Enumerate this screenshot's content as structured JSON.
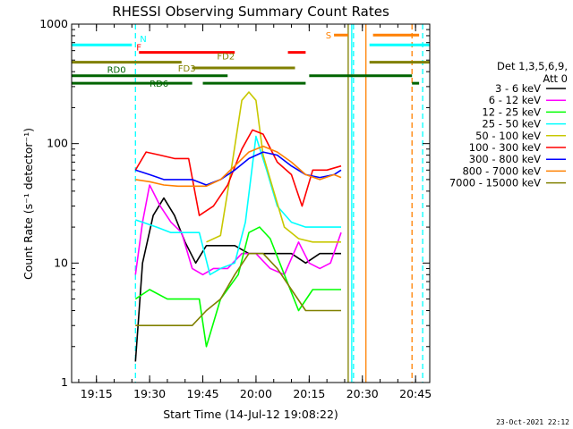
{
  "chart_data": {
    "type": "line",
    "title": "RHESSI Observing Summary Count Rates",
    "xlabel": "Start Time (14-Jul-12 19:08:22)",
    "ylabel": "Count Rate (s⁻¹ detector⁻¹)",
    "y_scale": "log",
    "xlim": [
      "19:08",
      "20:49"
    ],
    "ylim": [
      1,
      1000
    ],
    "x_ticks": [
      "19:15",
      "19:30",
      "19:45",
      "20:00",
      "20:15",
      "20:30",
      "20:45"
    ],
    "y_ticks": [
      "1",
      "10",
      "100",
      "1000"
    ],
    "footer_stamp": "23-Oct-2021 22:12",
    "legend_header": [
      "Det 1,3,5,6,9,",
      "Att 0"
    ],
    "series": [
      {
        "name": "3 - 6 keV",
        "color": "#000000",
        "x": [
          "19:26",
          "19:28",
          "19:31",
          "19:34",
          "19:37",
          "19:40",
          "19:43",
          "19:46",
          "19:50",
          "19:54",
          "19:58",
          "20:02",
          "20:06",
          "20:10",
          "20:14",
          "20:18",
          "20:22",
          "20:24"
        ],
        "y": [
          1.5,
          10,
          25,
          35,
          25,
          15,
          10,
          14,
          14,
          14,
          12,
          12,
          12,
          12,
          10,
          12,
          12,
          12
        ]
      },
      {
        "name": "6 - 12 keV",
        "color": "#ff00ff",
        "x": [
          "19:26",
          "19:28",
          "19:30",
          "19:33",
          "19:36",
          "19:39",
          "19:42",
          "19:45",
          "19:48",
          "19:52",
          "19:56",
          "20:00",
          "20:04",
          "20:08",
          "20:12",
          "20:15",
          "20:18",
          "20:21",
          "20:24"
        ],
        "y": [
          8,
          22,
          45,
          30,
          22,
          18,
          9,
          8,
          9,
          9,
          12,
          12,
          9,
          8,
          15,
          10,
          9,
          10,
          18
        ]
      },
      {
        "name": "12 - 25 keV",
        "color": "#00ff00",
        "x": [
          "19:26",
          "19:30",
          "19:35",
          "19:40",
          "19:44",
          "19:46",
          "19:50",
          "19:55",
          "19:58",
          "20:01",
          "20:04",
          "20:08",
          "20:12",
          "20:16",
          "20:20",
          "20:24"
        ],
        "y": [
          5,
          6,
          5,
          5,
          5,
          2,
          5,
          8,
          18,
          20,
          16,
          8,
          4,
          6,
          6,
          6
        ]
      },
      {
        "name": "25 - 50 keV",
        "color": "#00ffff",
        "x": [
          "19:26",
          "19:28",
          "19:32",
          "19:36",
          "19:40",
          "19:44",
          "19:47",
          "19:50",
          "19:54",
          "19:57",
          "20:00",
          "20:03",
          "20:06",
          "20:10",
          "20:14",
          "20:18",
          "20:22",
          "20:24"
        ],
        "y": [
          23,
          22,
          20,
          18,
          18,
          18,
          8,
          9,
          10,
          22,
          115,
          60,
          30,
          22,
          20,
          20,
          20,
          20
        ]
      },
      {
        "name": "50 - 100 keV",
        "color": "#c8c800",
        "x": [
          "19:46",
          "19:50",
          "19:53",
          "19:56",
          "19:58",
          "20:00",
          "20:02",
          "20:05",
          "20:08",
          "20:12",
          "20:16",
          "20:20",
          "20:24"
        ],
        "y": [
          15,
          17,
          60,
          230,
          270,
          230,
          80,
          40,
          20,
          16,
          15,
          15,
          15
        ]
      },
      {
        "name": "100 - 300 keV",
        "color": "#ff0000",
        "x": [
          "19:26",
          "19:29",
          "19:33",
          "19:37",
          "19:41",
          "19:44",
          "19:48",
          "19:52",
          "19:56",
          "19:59",
          "20:02",
          "20:06",
          "20:10",
          "20:13",
          "20:16",
          "20:20",
          "20:24"
        ],
        "y": [
          60,
          85,
          80,
          75,
          75,
          25,
          30,
          45,
          90,
          130,
          120,
          70,
          55,
          30,
          60,
          60,
          65
        ]
      },
      {
        "name": "300 - 800 keV",
        "color": "#0000ff",
        "x": [
          "19:26",
          "19:30",
          "19:34",
          "19:38",
          "19:42",
          "19:46",
          "19:50",
          "19:54",
          "19:58",
          "20:02",
          "20:06",
          "20:10",
          "20:14",
          "20:18",
          "20:22",
          "20:24"
        ],
        "y": [
          60,
          55,
          50,
          50,
          50,
          45,
          50,
          60,
          75,
          85,
          80,
          65,
          55,
          52,
          55,
          60
        ]
      },
      {
        "name": "800 - 7000 keV",
        "color": "#ff8000",
        "x": [
          "19:26",
          "19:30",
          "19:34",
          "19:38",
          "19:42",
          "19:46",
          "19:50",
          "19:54",
          "19:58",
          "20:02",
          "20:06",
          "20:10",
          "20:14",
          "20:18",
          "20:22",
          "20:24"
        ],
        "y": [
          50,
          48,
          45,
          44,
          44,
          44,
          50,
          65,
          85,
          95,
          85,
          70,
          55,
          50,
          55,
          52
        ]
      },
      {
        "name": "7000 - 15000 keV",
        "color": "#808000",
        "x": [
          "19:26",
          "19:30",
          "19:34",
          "19:38",
          "19:42",
          "19:46",
          "19:50",
          "19:54",
          "19:58",
          "20:02",
          "20:06",
          "20:10",
          "20:14",
          "20:18",
          "20:22",
          "20:24"
        ],
        "y": [
          3,
          3,
          3,
          3,
          3,
          4,
          5,
          8,
          12,
          12,
          9,
          6,
          4,
          4,
          4,
          4
        ]
      }
    ],
    "flag_bars": [
      {
        "label": "N",
        "color": "#00ffff",
        "segments": [
          [
            "19:08",
            "19:25"
          ],
          [
            "20:32",
            "20:49"
          ]
        ],
        "y": 670
      },
      {
        "label": "F",
        "color": "#ff0000",
        "segments": [
          [
            "19:27",
            "19:54"
          ],
          [
            "20:09",
            "20:14"
          ]
        ],
        "y": 580
      },
      {
        "label": "S",
        "color": "#ff8000",
        "segments": [
          [
            "20:22",
            "20:26"
          ],
          [
            "20:33",
            "20:46"
          ]
        ],
        "y": 810
      },
      {
        "label": "FD2",
        "color": "#808000",
        "segments": [
          [
            "19:08",
            "19:39"
          ],
          [
            "20:32",
            "20:49"
          ]
        ],
        "y": 480
      },
      {
        "label": "FD3",
        "color": "#808000",
        "segments": [
          [
            "19:42",
            "20:11"
          ]
        ],
        "y": 430
      },
      {
        "label": "RD0",
        "color": "#006400",
        "segments": [
          [
            "19:08",
            "19:52"
          ],
          [
            "20:15",
            "20:44"
          ]
        ],
        "y": 370
      },
      {
        "label": "RD6",
        "color": "#006400",
        "segments": [
          [
            "19:08",
            "19:42"
          ],
          [
            "19:45",
            "20:14"
          ],
          [
            "20:44",
            "20:46"
          ]
        ],
        "y": 320
      }
    ],
    "vertical_markers": [
      {
        "x": "19:26",
        "color": "#00ffff",
        "style": "dashed"
      },
      {
        "x": "20:27",
        "color": "#00ffff",
        "style": "solid"
      },
      {
        "x": "20:27.5",
        "color": "#00ffff",
        "style": "dashed"
      },
      {
        "x": "20:31",
        "color": "#ff8000",
        "style": "solid"
      },
      {
        "x": "20:44",
        "color": "#ff8000",
        "style": "dashed"
      },
      {
        "x": "20:47",
        "color": "#00ffff",
        "style": "dashed"
      },
      {
        "x": "20:26",
        "color": "#808000",
        "style": "solid"
      }
    ]
  }
}
